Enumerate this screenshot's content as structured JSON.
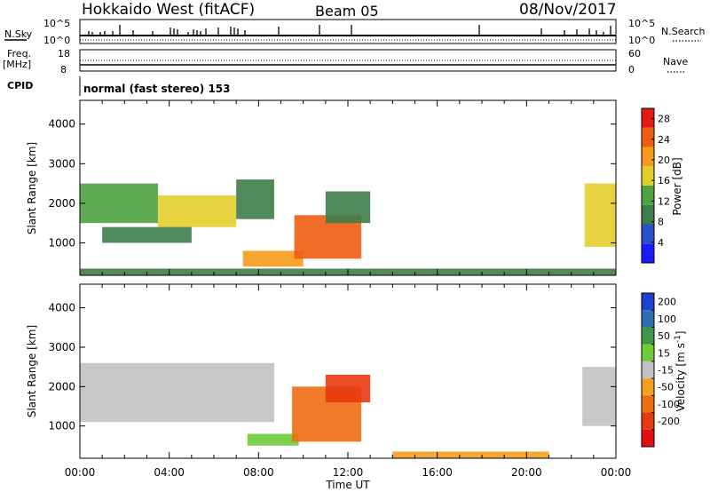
{
  "header": {
    "title": "Hokkaido West (fitACF)",
    "beam": "Beam 05",
    "date": "08/Nov/2017"
  },
  "top_panels": {
    "nsky_label": "N.Sky",
    "nsky_ticks": [
      "10^5",
      "10^0"
    ],
    "nsearch_label": "N.Search",
    "nsearch_ticks": [
      "10^5",
      "10^0"
    ],
    "freq_label": "Freq.",
    "freq_unit": "[MHz]",
    "freq_ticks": [
      "18",
      "8"
    ],
    "nave_label": "Nave",
    "nave_ticks": [
      "60",
      "0"
    ],
    "cpid_label": "CPID",
    "cpid_value": "normal (fast stereo) 153"
  },
  "chart_data": [
    {
      "type": "heatmap",
      "panel": "power",
      "ylabel": "Slant Range [km]",
      "xlabel": "Time UT",
      "xlim": [
        "00:00",
        "24:00"
      ],
      "ylim": [
        180,
        4600
      ],
      "y_ticks": [
        1000,
        2000,
        3000,
        4000
      ],
      "x_ticks": [
        "00:00",
        "04:00",
        "08:00",
        "12:00",
        "16:00",
        "20:00",
        "00:00"
      ],
      "colorbar": {
        "label": "Power [dB]",
        "ticks": [
          4,
          8,
          12,
          16,
          20,
          24,
          28
        ],
        "range": [
          0,
          30
        ],
        "colors": [
          "#1a1aff",
          "#2a50c8",
          "#3d7d4a",
          "#4ea341",
          "#e3cf2b",
          "#f59a1c",
          "#ef5d13",
          "#e41a10"
        ]
      },
      "regions": [
        {
          "t0": 0.0,
          "t1": 3.5,
          "r0": 1500,
          "r1": 2500,
          "value": 13
        },
        {
          "t0": 3.5,
          "t1": 7.0,
          "r0": 1400,
          "r1": 2200,
          "value": 17
        },
        {
          "t0": 7.0,
          "t1": 8.7,
          "r0": 1600,
          "r1": 2600,
          "value": 10
        },
        {
          "t0": 1.0,
          "t1": 5.0,
          "r0": 1000,
          "r1": 1400,
          "value": 8
        },
        {
          "t0": 7.3,
          "t1": 10.0,
          "r0": 400,
          "r1": 800,
          "value": 22
        },
        {
          "t0": 9.6,
          "t1": 12.6,
          "r0": 600,
          "r1": 1700,
          "value": 24
        },
        {
          "t0": 11.0,
          "t1": 13.0,
          "r0": 1500,
          "r1": 2300,
          "value": 9
        },
        {
          "t0": 22.6,
          "t1": 24.0,
          "r0": 900,
          "r1": 2500,
          "value": 16
        },
        {
          "t0": 0.0,
          "t1": 24.0,
          "r0": 180,
          "r1": 350,
          "value": 10
        }
      ]
    },
    {
      "type": "heatmap",
      "panel": "velocity",
      "ylabel": "Slant Range [km]",
      "xlabel": "Time UT",
      "xlim": [
        "00:00",
        "24:00"
      ],
      "ylim": [
        180,
        4600
      ],
      "y_ticks": [
        1000,
        2000,
        3000,
        4000
      ],
      "x_ticks": [
        "00:00",
        "04:00",
        "08:00",
        "12:00",
        "16:00",
        "20:00",
        "00:00"
      ],
      "colorbar": {
        "label": "Velocity [m s^-1]",
        "ticks": [
          "200",
          "100",
          "50",
          "15",
          "-15",
          "-50",
          "-100",
          "-200"
        ],
        "range": [
          -250,
          250
        ],
        "colors": [
          "#1f3fd1",
          "#2e6fb4",
          "#3f9645",
          "#6fcb38",
          "#c2c2c2",
          "#f2a020",
          "#ef6d12",
          "#e83a10",
          "#e01010"
        ]
      },
      "regions": [
        {
          "t0": 0.0,
          "t1": 8.7,
          "r0": 1100,
          "r1": 2600,
          "value": 0
        },
        {
          "t0": 7.5,
          "t1": 9.8,
          "r0": 500,
          "r1": 800,
          "value": 60
        },
        {
          "t0": 9.5,
          "t1": 12.6,
          "r0": 600,
          "r1": 2000,
          "value": -120
        },
        {
          "t0": 11.0,
          "t1": 13.0,
          "r0": 1600,
          "r1": 2300,
          "value": -160
        },
        {
          "t0": 22.5,
          "t1": 24.0,
          "r0": 1000,
          "r1": 2500,
          "value": 5
        },
        {
          "t0": 14.0,
          "t1": 21.0,
          "r0": 180,
          "r1": 350,
          "value": -60
        }
      ]
    }
  ]
}
